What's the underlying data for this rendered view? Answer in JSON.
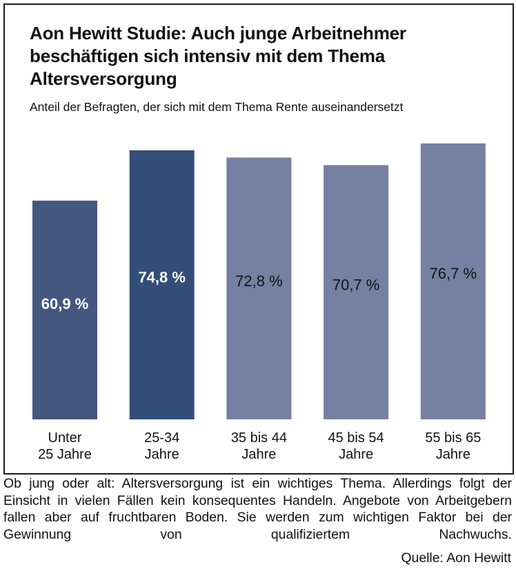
{
  "chart_data": {
    "type": "bar",
    "title": "Aon Hewitt Studie: Auch junge Arbeitnehmer beschäftigen sich intensiv mit dem Thema Altersversorgung",
    "subtitle": "Anteil der Befragten, der sich mit dem Thema Rente auseinandersetzt",
    "xlabel": "",
    "ylabel": "",
    "unit": "%",
    "categories": [
      [
        "Unter",
        "25 Jahre"
      ],
      [
        "25-34",
        "Jahre"
      ],
      [
        "35 bis 44",
        "Jahre"
      ],
      [
        "45 bis 54",
        "Jahre"
      ],
      [
        "55 bis 65",
        "Jahre"
      ]
    ],
    "values": [
      60.9,
      74.8,
      72.8,
      70.7,
      76.7
    ],
    "value_labels": [
      "60,9 %",
      "74,8 %",
      "72,8 %",
      "70,7 %",
      "76,7 %"
    ],
    "bar_colors": [
      "#44577f",
      "#334e78",
      "#7680a2",
      "#7680a2",
      "#7680a2"
    ],
    "label_colors": [
      "#ffffff",
      "#ffffff",
      "#111111",
      "#111111",
      "#111111"
    ],
    "label_bold": [
      true,
      true,
      false,
      false,
      false
    ],
    "grid": false,
    "axes_visible": false,
    "legend": "none"
  },
  "header": {
    "title": "Aon Hewitt Studie: Auch junge Arbeitnehmer beschäftigen sich intensiv mit dem Thema Altersversorgung",
    "subtitle": "Anteil der Befragten, der sich mit dem Thema Rente auseinandersetzt"
  },
  "caption": "Ob jung oder alt: Altersversorgung ist ein wichtiges Thema. Allerdings folgt der Einsicht in vielen Fällen kein konsequentes Handeln. Angebote von Arbeitgebern fallen aber auf fruchtbaren Boden. Sie werden zum wichtigen Faktor bei der Gewinnung von qualifiziertem Nachwuchs.",
  "source": "Quelle: Aon Hewitt"
}
